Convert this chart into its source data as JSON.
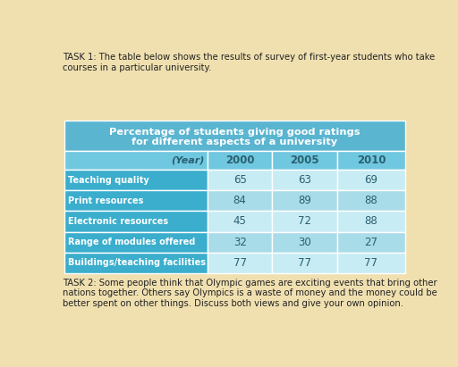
{
  "task1_text": "TASK 1: The table below shows the results of survey of first-year students who take\ncourses in a particular university.",
  "task2_text": "TASK 2: Some people think that Olympic games are exciting events that bring other\nnations together. Others say Olympics is a waste of money and the money could be\nbetter spent on other things. Discuss both views and give your own opinion.",
  "table_header_line1": "Percentage of students giving good ratings",
  "table_header_line2": "for different aspects of a university",
  "years": [
    "(Year)",
    "2000",
    "2005",
    "2010"
  ],
  "rows": [
    [
      "Teaching quality",
      "65",
      "63",
      "69"
    ],
    [
      "Print resources",
      "84",
      "89",
      "88"
    ],
    [
      "Electronic resources",
      "45",
      "72",
      "88"
    ],
    [
      "Range of modules offered",
      "32",
      "30",
      "27"
    ],
    [
      "Buildings/teaching facilities",
      "77",
      "77",
      "77"
    ]
  ],
  "bg_color": "#f0e0b0",
  "header_bg": "#5ab5d0",
  "subheader_bg": "#70c8e0",
  "row_label_bg": "#3aaecc",
  "data_cell_light": "#c8ecf4",
  "data_cell_dark": "#a8dce8",
  "header_text_color": "#ffffff",
  "label_text_color": "#ffffff",
  "subheader_text_color": "#2a6070",
  "data_text_color": "#2a6070",
  "task_text_color": "#222222"
}
